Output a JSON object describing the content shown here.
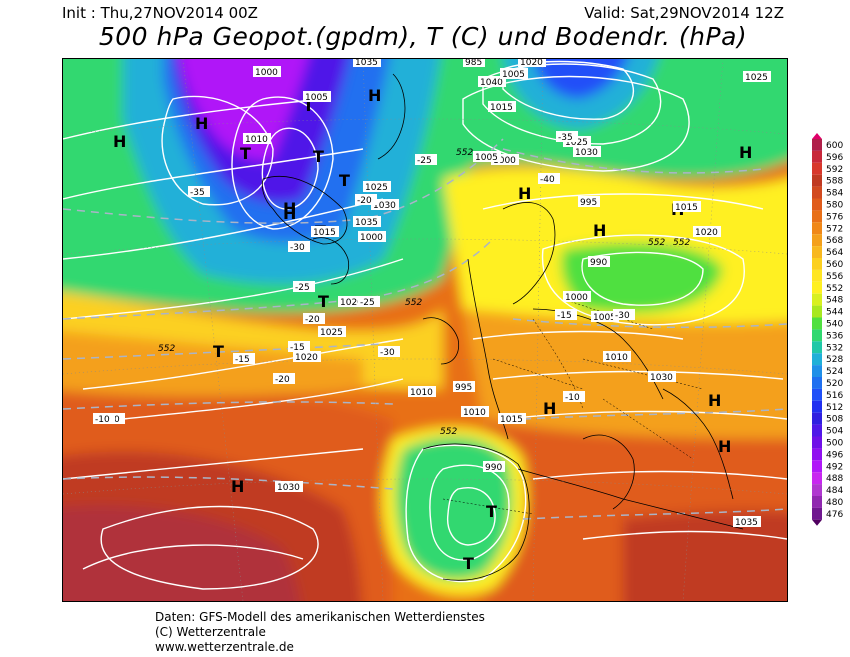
{
  "header": {
    "init": "Init : Thu,27NOV2014 00Z",
    "valid": "Valid: Sat,29NOV2014 12Z",
    "title": "500 hPa Geopot.(gpdm), T (C) und Bodendr. (hPa)"
  },
  "footer": {
    "line1": "Daten: GFS-Modell des amerikanischen Wetterdienstes",
    "line2": "(C) Wetterzentrale",
    "line3": "www.wetterzentrale.de"
  },
  "legend": {
    "levels": [
      "600",
      "596",
      "592",
      "588",
      "584",
      "580",
      "576",
      "572",
      "568",
      "564",
      "560",
      "556",
      "552",
      "548",
      "544",
      "540",
      "536",
      "532",
      "528",
      "524",
      "520",
      "516",
      "512",
      "508",
      "504",
      "500",
      "496",
      "492",
      "488",
      "484",
      "480",
      "476"
    ],
    "colors": [
      "#b0204a",
      "#c8283a",
      "#d8382c",
      "#c03a22",
      "#d24a20",
      "#e05c1c",
      "#e87018",
      "#f08818",
      "#f4a01c",
      "#f8b820",
      "#fcd020",
      "#ffe624",
      "#fff020",
      "#d8f020",
      "#a8e820",
      "#50e040",
      "#30d870",
      "#20c8a8",
      "#20b0d8",
      "#2090e8",
      "#2070f0",
      "#2050f8",
      "#2030f0",
      "#3020e0",
      "#5018e8",
      "#7010e8",
      "#9010f0",
      "#b018f8",
      "#c828f0",
      "#b038d0",
      "#9028b0",
      "#701890"
    ],
    "top_color": "#e0006a",
    "bottom_color": "#500060"
  },
  "map": {
    "high_symbol": "H",
    "low_symbol": "T",
    "pressure_labels": [
      "1000",
      "1005",
      "1010",
      "1015",
      "1020",
      "1025",
      "1030",
      "1035",
      "1040",
      "995",
      "990",
      "985",
      "1000",
      "1005",
      "1010",
      "1015",
      "1020",
      "1025",
      "1030",
      "1035",
      "1000",
      "1005",
      "1010",
      "1015",
      "1020",
      "1025",
      "1030",
      "995",
      "990",
      "1000",
      "1005",
      "1010",
      "1015",
      "1020",
      "1025",
      "1030",
      "1035",
      "1040"
    ],
    "temperature_labels": [
      "-35",
      "-30",
      "-25",
      "-20",
      "-15",
      "-10",
      "-30",
      "-25",
      "-20",
      "-15",
      "-10",
      "-30",
      "-25",
      "-20",
      "-15",
      "-10",
      "-40",
      "-35"
    ],
    "geopot_labels": [
      "552",
      "552",
      "552",
      "552",
      "552",
      "552"
    ]
  }
}
